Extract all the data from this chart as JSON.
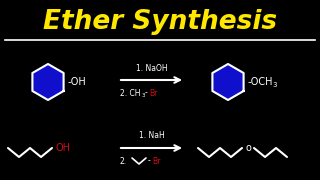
{
  "title": "Ether Synthesis",
  "title_color": "#FFE800",
  "title_fontsize": 19,
  "bg_color": "#000000",
  "line_color": "#FFFFFF",
  "hex_fill": "#1010CC",
  "hex_outline": "#FFFFFF",
  "red_color": "#CC1111",
  "reaction1_step1": "1. NaOH",
  "reaction1_step2_white": "2. CH",
  "reaction1_step2_sub": "3",
  "reaction1_step2_dash": "-",
  "reaction1_step2_red": "Br",
  "reaction2_step1": "1. NaH",
  "reaction2_step2_num": "2.",
  "reaction2_step2_red": "Br",
  "product1_label": "-OCH",
  "product1_sub": "3",
  "reactant1_label": "-OH"
}
